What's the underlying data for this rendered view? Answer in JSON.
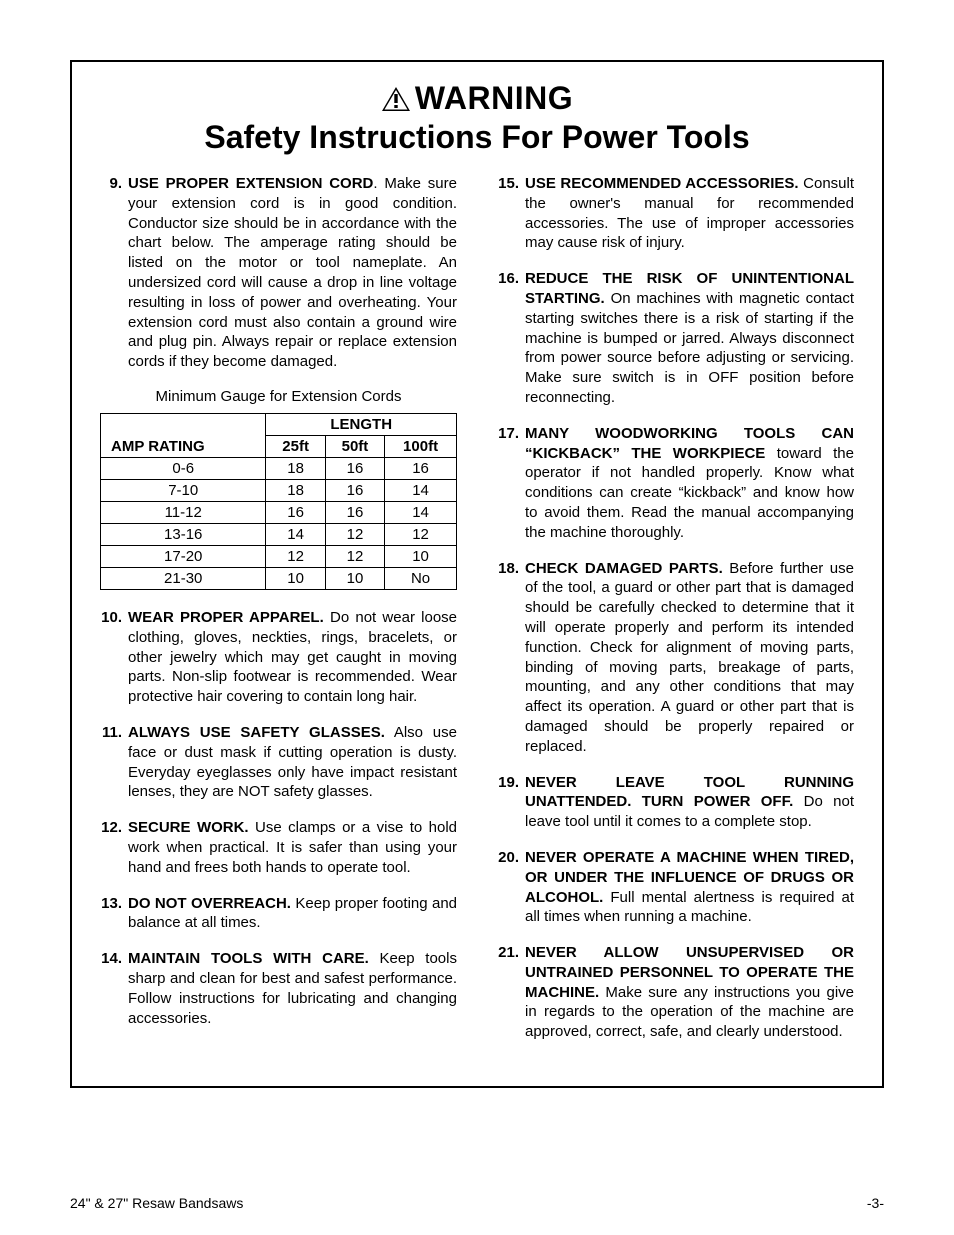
{
  "header": {
    "warning_label": "WARNING",
    "subtitle": "Safety Instructions For Power Tools"
  },
  "table": {
    "caption": "Minimum Gauge for Extension Cords",
    "length_header": "LENGTH",
    "amp_header": "AMP RATING",
    "length_cols": [
      "25ft",
      "50ft",
      "100ft"
    ],
    "rows": [
      {
        "amp": "0-6",
        "v": [
          "18",
          "16",
          "16"
        ]
      },
      {
        "amp": "7-10",
        "v": [
          "18",
          "16",
          "14"
        ]
      },
      {
        "amp": "11-12",
        "v": [
          "16",
          "16",
          "14"
        ]
      },
      {
        "amp": "13-16",
        "v": [
          "14",
          "12",
          "12"
        ]
      },
      {
        "amp": "17-20",
        "v": [
          "12",
          "12",
          "10"
        ]
      },
      {
        "amp": "21-30",
        "v": [
          "10",
          "10",
          "No"
        ]
      }
    ]
  },
  "left_items": [
    {
      "num": "9.",
      "title": "USE PROPER EXTENSION CORD",
      "sep": ". ",
      "text": "Make sure your extension cord is in good condition. Conductor size should be in accordance with the chart below. The amperage rating should be listed on the motor or tool nameplate. An undersized cord will cause a drop in line voltage resulting in loss of power and overheating. Your extension cord must also contain a ground wire and plug pin. Always repair or replace extension cords if they become damaged."
    },
    {
      "num": "10.",
      "title": "WEAR PROPER APPAREL.",
      "sep": " ",
      "text": "Do not wear loose clothing, gloves, neckties, rings, bracelets, or other jewelry which may get caught in moving parts. Non-slip footwear is recommended. Wear protective hair covering to contain long hair."
    },
    {
      "num": "11.",
      "title": "ALWAYS USE SAFETY GLASSES.",
      "sep": " ",
      "text": "Also use face or dust mask if cutting operation is dusty. Everyday eyeglasses only have impact resistant lenses, they are NOT safety glasses."
    },
    {
      "num": "12.",
      "title": "SECURE WORK.",
      "sep": " ",
      "text": "Use clamps or a vise to hold work when practical. It is safer than using your hand and frees both hands to operate tool."
    },
    {
      "num": "13.",
      "title": "DO NOT OVERREACH.",
      "sep": " ",
      "text": "Keep proper footing and balance at all times."
    },
    {
      "num": "14.",
      "title": "MAINTAIN TOOLS WITH CARE.",
      "sep": " ",
      "text": "Keep tools sharp and clean for best and safest performance. Follow instructions for lubricating and changing accessories."
    }
  ],
  "right_items": [
    {
      "num": "15.",
      "title": "USE RECOMMENDED ACCESSORIES.",
      "sep": " ",
      "text": "Consult the owner's manual for recommended accessories. The use of improper accessories may cause risk of injury."
    },
    {
      "num": "16.",
      "title": "REDUCE THE RISK OF UNINTENTIONAL STARTING.",
      "sep": " ",
      "text": "On machines with magnetic contact starting switches there is a risk of starting if the machine is bumped or jarred. Always disconnect from power source before adjusting or servicing. Make sure switch is in OFF position before reconnecting."
    },
    {
      "num": "17.",
      "title": "MANY WOODWORKING TOOLS CAN “KICKBACK” THE WORKPIECE",
      "sep": " ",
      "text": "toward the operator if not handled properly. Know what conditions can create “kickback” and know how to avoid them. Read the manual accompanying the machine thoroughly."
    },
    {
      "num": "18.",
      "title": "CHECK DAMAGED PARTS.",
      "sep": " ",
      "text": "Before further use of the tool, a guard or other part that is damaged should be carefully checked to determine that it will operate properly and perform its intended function. Check for alignment of moving parts, binding of moving parts, breakage of parts, mounting, and any other conditions that may affect its operation. A guard or other part that is damaged should be properly repaired or replaced."
    },
    {
      "num": "19.",
      "title": "NEVER LEAVE TOOL RUNNING UNATTENDED. TURN POWER OFF.",
      "sep": " ",
      "text": "Do not leave tool until it comes to a complete stop."
    },
    {
      "num": "20.",
      "title": "NEVER OPERATE A MACHINE WHEN TIRED, OR UNDER THE INFLUENCE OF DRUGS OR ALCOHOL.",
      "sep": " ",
      "text": "Full mental alertness is required at all times when running a machine."
    },
    {
      "num": "21.",
      "title": "NEVER ALLOW UNSUPERVISED OR UNTRAINED PERSONNEL TO OPERATE THE MACHINE.",
      "sep": " ",
      "text": "Make sure any instructions you give in regards to the operation of the machine are approved, correct, safe, and clearly understood."
    }
  ],
  "footer": {
    "left": "24\" & 27\" Resaw Bandsaws",
    "right": "-3-"
  }
}
